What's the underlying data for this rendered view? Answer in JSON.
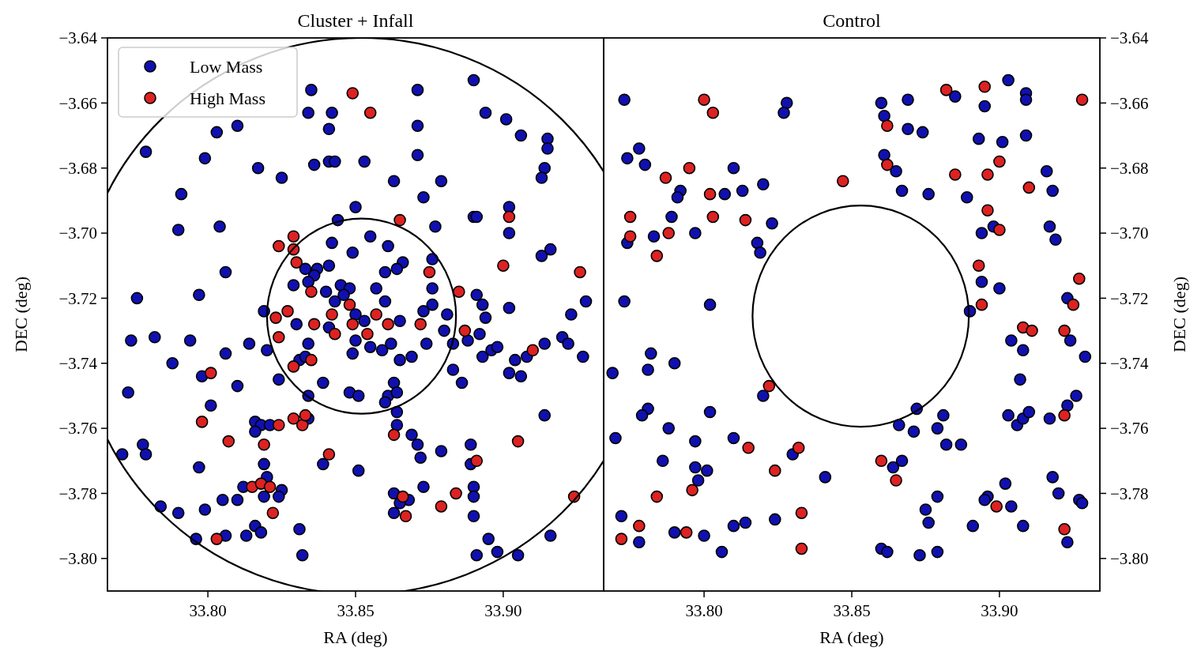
{
  "chart_data": [
    {
      "type": "scatter",
      "title": "Cluster + Infall",
      "xlabel": "RA (deg)",
      "ylabel": "DEC (deg)",
      "xlim": [
        33.766,
        33.934
      ],
      "ylim": [
        -3.81,
        -3.64
      ],
      "xticks": [
        {
          "value": 33.8,
          "label": "33.80"
        },
        {
          "value": 33.85,
          "label": "33.85"
        },
        {
          "value": 33.9,
          "label": "33.90"
        }
      ],
      "yticks": [
        {
          "value": -3.8,
          "label": "−3.80"
        },
        {
          "value": -3.78,
          "label": "−3.78"
        },
        {
          "value": -3.76,
          "label": "−3.76"
        },
        {
          "value": -3.74,
          "label": "−3.74"
        },
        {
          "value": -3.72,
          "label": "−3.72"
        },
        {
          "value": -3.7,
          "label": "−3.70"
        },
        {
          "value": -3.68,
          "label": "−3.68"
        },
        {
          "value": -3.66,
          "label": "−3.66"
        },
        {
          "value": -3.64,
          "label": "−3.64"
        }
      ],
      "legend": "top left",
      "marker": "circle",
      "series": [
        {
          "name": "Low Mass",
          "color": "#1010b0",
          "x": [
            33.779,
            33.799,
            33.803,
            33.81,
            33.817,
            33.825,
            33.835,
            33.834,
            33.842,
            33.841,
            33.836,
            33.841,
            33.843,
            33.853,
            33.871,
            33.871,
            33.871,
            33.863,
            33.879,
            33.873,
            33.85,
            33.791,
            33.89,
            33.894,
            33.901,
            33.906,
            33.915,
            33.915,
            33.914,
            33.913,
            33.902,
            33.89,
            33.844,
            33.79,
            33.804,
            33.806,
            33.776,
            33.797,
            33.774,
            33.782,
            33.794,
            33.788,
            33.806,
            33.814,
            33.82,
            33.773,
            33.81,
            33.824,
            33.839,
            33.842,
            33.849,
            33.855,
            33.861,
            33.877,
            33.891,
            33.902,
            33.916,
            33.913,
            33.902,
            33.928,
            33.923,
            33.927,
            33.914,
            33.92,
            33.922,
            33.904,
            33.902,
            33.906,
            33.908,
            33.893,
            33.896,
            33.898,
            33.886,
            33.883,
            33.888,
            33.892,
            33.891,
            33.893,
            33.894,
            33.881,
            33.88,
            33.883,
            33.876,
            33.876,
            33.873,
            33.874,
            33.876,
            33.866,
            33.864,
            33.86,
            33.865,
            33.865,
            33.869,
            33.859,
            33.862,
            33.855,
            33.85,
            33.849,
            33.863,
            33.861,
            33.864,
            33.848,
            33.851,
            33.857,
            33.86,
            33.841,
            33.837,
            33.836,
            33.833,
            33.829,
            33.834,
            33.84,
            33.845,
            33.848,
            33.843,
            33.846,
            33.841,
            33.83,
            33.819,
            33.834,
            33.831,
            33.833,
            33.853,
            33.85,
            33.834,
            33.798,
            33.801,
            33.778,
            33.779,
            33.771,
            33.797,
            33.816,
            33.818,
            33.816,
            33.821,
            33.819,
            33.82,
            33.812,
            33.825,
            33.824,
            33.819,
            33.805,
            33.81,
            33.799,
            33.784,
            33.79,
            33.796,
            33.806,
            33.813,
            33.816,
            33.818,
            33.831,
            33.832,
            33.834,
            33.839,
            33.851,
            33.864,
            33.864,
            33.869,
            33.871,
            33.872,
            33.863,
            33.868,
            33.863,
            33.873,
            33.879,
            33.889,
            33.889,
            33.89,
            33.89,
            33.89,
            33.895,
            33.898,
            33.891,
            33.905,
            33.916,
            33.914,
            33.865,
            33.86
          ],
          "values": [
            -3.675,
            -3.677,
            -3.669,
            -3.667,
            -3.68,
            -3.683,
            -3.656,
            -3.663,
            -3.663,
            -3.668,
            -3.679,
            -3.678,
            -3.678,
            -3.678,
            -3.656,
            -3.667,
            -3.676,
            -3.684,
            -3.684,
            -3.689,
            -3.692,
            -3.688,
            -3.653,
            -3.663,
            -3.665,
            -3.67,
            -3.671,
            -3.674,
            -3.68,
            -3.683,
            -3.692,
            -3.695,
            -3.696,
            -3.699,
            -3.698,
            -3.712,
            -3.72,
            -3.719,
            -3.733,
            -3.732,
            -3.733,
            -3.74,
            -3.737,
            -3.734,
            -3.736,
            -3.749,
            -3.747,
            -3.745,
            -3.746,
            -3.703,
            -3.706,
            -3.701,
            -3.704,
            -3.698,
            -3.695,
            -3.7,
            -3.705,
            -3.707,
            -3.723,
            -3.721,
            -3.725,
            -3.738,
            -3.734,
            -3.732,
            -3.734,
            -3.739,
            -3.743,
            -3.744,
            -3.738,
            -3.738,
            -3.736,
            -3.735,
            -3.746,
            -3.742,
            -3.733,
            -3.731,
            -3.719,
            -3.722,
            -3.726,
            -3.725,
            -3.73,
            -3.734,
            -3.717,
            -3.722,
            -3.724,
            -3.734,
            -3.708,
            -3.709,
            -3.711,
            -3.712,
            -3.727,
            -3.739,
            -3.738,
            -3.736,
            -3.734,
            -3.735,
            -3.733,
            -3.737,
            -3.746,
            -3.75,
            -3.749,
            -3.749,
            -3.75,
            -3.717,
            -3.721,
            -3.71,
            -3.711,
            -3.713,
            -3.711,
            -3.716,
            -3.715,
            -3.718,
            -3.716,
            -3.717,
            -3.721,
            -3.719,
            -3.729,
            -3.728,
            -3.724,
            -3.734,
            -3.739,
            -3.738,
            -3.727,
            -3.725,
            -3.75,
            -3.744,
            -3.753,
            -3.765,
            -3.768,
            -3.768,
            -3.772,
            -3.758,
            -3.759,
            -3.761,
            -3.759,
            -3.771,
            -3.775,
            -3.778,
            -3.779,
            -3.781,
            -3.781,
            -3.782,
            -3.782,
            -3.785,
            -3.784,
            -3.786,
            -3.794,
            -3.793,
            -3.793,
            -3.79,
            -3.792,
            -3.791,
            -3.799,
            -3.757,
            -3.771,
            -3.773,
            -3.755,
            -3.759,
            -3.762,
            -3.765,
            -3.769,
            -3.78,
            -3.782,
            -3.786,
            -3.778,
            -3.767,
            -3.765,
            -3.771,
            -3.778,
            -3.781,
            -3.787,
            -3.794,
            -3.798,
            -3.799,
            -3.799,
            -3.793,
            -3.756,
            -3.783,
            -3.752
          ]
        },
        {
          "name": "High Mass",
          "color": "#dd2222",
          "x": [
            33.849,
            33.855,
            33.902,
            33.829,
            33.824,
            33.829,
            33.83,
            33.835,
            33.848,
            33.842,
            33.849,
            33.857,
            33.861,
            33.854,
            33.843,
            33.836,
            33.827,
            33.823,
            33.824,
            33.829,
            33.835,
            33.801,
            33.865,
            33.875,
            33.885,
            33.872,
            33.887,
            33.9,
            33.926,
            33.91,
            33.798,
            33.807,
            33.819,
            33.824,
            33.829,
            33.832,
            33.833,
            33.815,
            33.818,
            33.821,
            33.822,
            33.803,
            33.841,
            33.863,
            33.866,
            33.867,
            33.879,
            33.884,
            33.891,
            33.905,
            33.924
          ],
          "values": [
            -3.657,
            -3.663,
            -3.695,
            -3.701,
            -3.704,
            -3.705,
            -3.709,
            -3.718,
            -3.722,
            -3.725,
            -3.728,
            -3.725,
            -3.728,
            -3.731,
            -3.731,
            -3.728,
            -3.724,
            -3.726,
            -3.732,
            -3.741,
            -3.739,
            -3.743,
            -3.696,
            -3.712,
            -3.718,
            -3.728,
            -3.73,
            -3.71,
            -3.712,
            -3.736,
            -3.758,
            -3.764,
            -3.765,
            -3.759,
            -3.757,
            -3.759,
            -3.756,
            -3.778,
            -3.777,
            -3.778,
            -3.786,
            -3.794,
            -3.768,
            -3.762,
            -3.781,
            -3.787,
            -3.784,
            -3.78,
            -3.77,
            -3.764,
            -3.781
          ]
        }
      ]
    },
    {
      "type": "scatter",
      "title": "Control",
      "xlabel": "RA (deg)",
      "y2label": "DEC (deg)",
      "xlim": [
        33.766,
        33.934
      ],
      "y2lim": [
        -3.81,
        -3.64
      ],
      "xticks": [
        {
          "value": 33.8,
          "label": "33.80"
        },
        {
          "value": 33.85,
          "label": "33.85"
        },
        {
          "value": 33.9,
          "label": "33.90"
        }
      ],
      "y2ticks": [
        {
          "value": -3.8,
          "label": "−3.80"
        },
        {
          "value": -3.78,
          "label": "−3.78"
        },
        {
          "value": -3.76,
          "label": "−3.76"
        },
        {
          "value": -3.74,
          "label": "−3.74"
        },
        {
          "value": -3.72,
          "label": "−3.72"
        },
        {
          "value": -3.7,
          "label": "−3.70"
        },
        {
          "value": -3.68,
          "label": "−3.68"
        },
        {
          "value": -3.66,
          "label": "−3.66"
        },
        {
          "value": -3.64,
          "label": "−3.64"
        }
      ],
      "marker": "circle",
      "series": [
        {
          "axis": "y2",
          "color": "#1010b0",
          "x": [
            33.773,
            33.828,
            33.827,
            33.86,
            33.861,
            33.869,
            33.885,
            33.895,
            33.903,
            33.909,
            33.909,
            33.869,
            33.874,
            33.893,
            33.901,
            33.909,
            33.778,
            33.774,
            33.78,
            33.81,
            33.792,
            33.791,
            33.807,
            33.813,
            33.82,
            33.861,
            33.865,
            33.867,
            33.876,
            33.889,
            33.916,
            33.918,
            33.789,
            33.774,
            33.783,
            33.797,
            33.823,
            33.818,
            33.819,
            33.894,
            33.898,
            33.917,
            33.919,
            33.894,
            33.9,
            33.923,
            33.89,
            33.773,
            33.802,
            33.782,
            33.781,
            33.79,
            33.769,
            33.904,
            33.908,
            33.924,
            33.929,
            33.907,
            33.926,
            33.82,
            33.781,
            33.779,
            33.802,
            33.77,
            33.788,
            33.797,
            33.81,
            33.786,
            33.797,
            33.801,
            33.798,
            33.83,
            33.841,
            33.872,
            33.866,
            33.871,
            33.881,
            33.879,
            33.882,
            33.887,
            33.867,
            33.864,
            33.903,
            33.906,
            33.908,
            33.91,
            33.917,
            33.923,
            33.902,
            33.918,
            33.92,
            33.927,
            33.928,
            33.879,
            33.875,
            33.876,
            33.896,
            33.895,
            33.904,
            33.891,
            33.908,
            33.923,
            33.86,
            33.862,
            33.873,
            33.879,
            33.772,
            33.778,
            33.79,
            33.8,
            33.806,
            33.81,
            33.814,
            33.824
          ],
          "values": [
            -3.659,
            -3.66,
            -3.663,
            -3.66,
            -3.664,
            -3.659,
            -3.658,
            -3.661,
            -3.653,
            -3.657,
            -3.659,
            -3.668,
            -3.669,
            -3.671,
            -3.672,
            -3.67,
            -3.674,
            -3.677,
            -3.679,
            -3.68,
            -3.687,
            -3.689,
            -3.688,
            -3.687,
            -3.685,
            -3.676,
            -3.681,
            -3.687,
            -3.688,
            -3.689,
            -3.681,
            -3.687,
            -3.695,
            -3.703,
            -3.701,
            -3.7,
            -3.697,
            -3.703,
            -3.706,
            -3.7,
            -3.698,
            -3.698,
            -3.702,
            -3.715,
            -3.717,
            -3.72,
            -3.724,
            -3.721,
            -3.722,
            -3.737,
            -3.742,
            -3.74,
            -3.743,
            -3.733,
            -3.736,
            -3.733,
            -3.738,
            -3.745,
            -3.75,
            -3.75,
            -3.754,
            -3.756,
            -3.755,
            -3.763,
            -3.76,
            -3.764,
            -3.763,
            -3.77,
            -3.772,
            -3.773,
            -3.776,
            -3.768,
            -3.775,
            -3.754,
            -3.759,
            -3.761,
            -3.756,
            -3.76,
            -3.765,
            -3.765,
            -3.77,
            -3.772,
            -3.756,
            -3.759,
            -3.757,
            -3.755,
            -3.757,
            -3.753,
            -3.777,
            -3.775,
            -3.78,
            -3.782,
            -3.783,
            -3.781,
            -3.785,
            -3.789,
            -3.781,
            -3.782,
            -3.784,
            -3.79,
            -3.79,
            -3.795,
            -3.797,
            -3.798,
            -3.799,
            -3.798,
            -3.787,
            -3.795,
            -3.792,
            -3.793,
            -3.798,
            -3.79,
            -3.789,
            -3.788
          ]
        },
        {
          "axis": "y2",
          "color": "#dd2222",
          "x": [
            33.8,
            33.803,
            33.862,
            33.862,
            33.882,
            33.895,
            33.928,
            33.847,
            33.885,
            33.896,
            33.9,
            33.91,
            33.896,
            33.795,
            33.787,
            33.802,
            33.775,
            33.803,
            33.814,
            33.775,
            33.788,
            33.784,
            33.9,
            33.893,
            33.894,
            33.927,
            33.925,
            33.908,
            33.911,
            33.922,
            33.822,
            33.815,
            33.832,
            33.824,
            33.86,
            33.865,
            33.784,
            33.796,
            33.833,
            33.833,
            33.778,
            33.772,
            33.794,
            33.899,
            33.922,
            33.922
          ],
          "values": [
            -3.659,
            -3.663,
            -3.667,
            -3.679,
            -3.656,
            -3.655,
            -3.659,
            -3.684,
            -3.682,
            -3.682,
            -3.678,
            -3.686,
            -3.693,
            -3.68,
            -3.683,
            -3.688,
            -3.695,
            -3.695,
            -3.696,
            -3.701,
            -3.7,
            -3.707,
            -3.699,
            -3.71,
            -3.722,
            -3.714,
            -3.722,
            -3.729,
            -3.73,
            -3.73,
            -3.747,
            -3.766,
            -3.766,
            -3.773,
            -3.77,
            -3.776,
            -3.781,
            -3.779,
            -3.786,
            -3.797,
            -3.79,
            -3.794,
            -3.792,
            -3.784,
            -3.791,
            -3.756
          ]
        }
      ]
    }
  ]
}
